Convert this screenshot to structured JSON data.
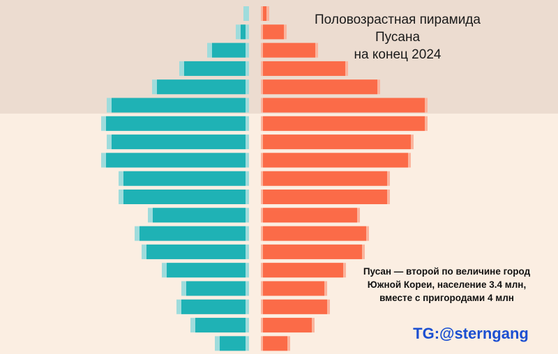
{
  "title_lines": [
    "Половозрастная пирамида Пусана",
    "на конец 2024"
  ],
  "note_lines": [
    "Пусан — второй по величине город",
    "Южной Кореи, население 3.4 млн,",
    "вместе с пригородами 4 млн"
  ],
  "watermark": "TG:@sterngang",
  "colors": {
    "male": "#1fb2b5",
    "male_light": "#9fdcdc",
    "female": "#fb6b48",
    "female_light": "#fbb49d",
    "band": "#ecdcd0",
    "background": "#fbeee2"
  },
  "chart_data": {
    "type": "bar",
    "orientation": "horizontal-pyramid",
    "title": "Половозрастная пирамида Пусана на конец 2024",
    "order": "top = oldest, bottom = youngest",
    "series": [
      {
        "values": [
          1,
          12,
          53,
          93,
          132,
          197,
          205,
          197,
          205,
          180,
          180,
          138,
          157,
          147,
          118,
          90,
          97,
          77,
          42
        ]
      },
      {
        "values": [
          5,
          30,
          75,
          118,
          164,
          232,
          232,
          212,
          208,
          178,
          178,
          135,
          148,
          142,
          115,
          88,
          92,
          70,
          35
        ]
      }
    ],
    "shaded_band_rows": 6
  }
}
